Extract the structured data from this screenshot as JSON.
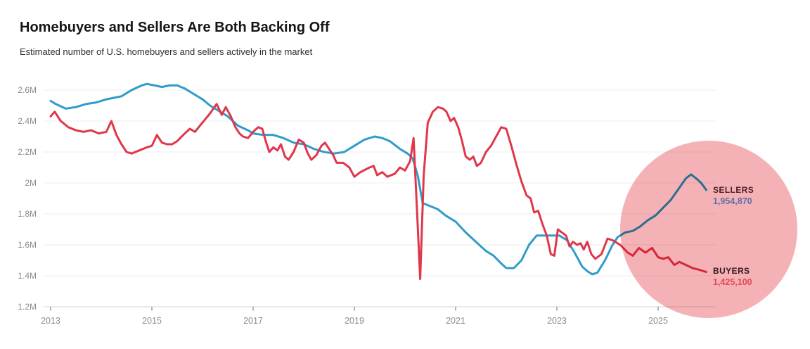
{
  "header": {
    "title": "Homebuyers and Sellers Are Both Backing Off",
    "subtitle": "Estimated number of U.S. homebuyers and sellers actively in the market"
  },
  "chart_data": {
    "type": "line",
    "title": "Homebuyers and Sellers Are Both Backing Off",
    "subtitle": "Estimated number of U.S. homebuyers and sellers actively in the market",
    "unit": "millions of people",
    "grid": true,
    "legend_position": "end-of-line labels (right side, inside pink highlight circle)",
    "x_axis": {
      "label": "",
      "ticks": [
        2013,
        2015,
        2017,
        2019,
        2021,
        2023,
        2025
      ],
      "tick_labels": [
        "2013",
        "2015",
        "2017",
        "2019",
        "2021",
        "2023",
        "2025"
      ],
      "range": [
        2013,
        2026
      ]
    },
    "y_axis": {
      "label": "",
      "ticks": [
        2.6,
        2.4,
        2.2,
        2.0,
        1.8,
        1.6,
        1.4,
        1.2
      ],
      "tick_labels": [
        "2.6M",
        "2.4M",
        "2.2M",
        "2M",
        "1.8M",
        "1.6M",
        "1.4M",
        "1.2M"
      ],
      "range": [
        1.2,
        2.6
      ]
    },
    "highlight": {
      "description": "pink circle highlighting 2024-2026 divergence",
      "color": "#f5b2b6"
    },
    "series": [
      {
        "name": "SELLERS",
        "color": "#2f9cc9",
        "end_label": "SELLERS",
        "end_value": 1954870,
        "end_value_label": "1,954,870",
        "points": [
          [
            2013.0,
            2.53
          ],
          [
            2013.1,
            2.51
          ],
          [
            2013.3,
            2.48
          ],
          [
            2013.5,
            2.49
          ],
          [
            2013.7,
            2.51
          ],
          [
            2013.9,
            2.52
          ],
          [
            2014.1,
            2.54
          ],
          [
            2014.25,
            2.55
          ],
          [
            2014.4,
            2.56
          ],
          [
            2014.6,
            2.6
          ],
          [
            2014.8,
            2.63
          ],
          [
            2014.9,
            2.64
          ],
          [
            2015.05,
            2.63
          ],
          [
            2015.2,
            2.62
          ],
          [
            2015.35,
            2.63
          ],
          [
            2015.5,
            2.63
          ],
          [
            2015.65,
            2.61
          ],
          [
            2015.8,
            2.58
          ],
          [
            2016.0,
            2.54
          ],
          [
            2016.15,
            2.5
          ],
          [
            2016.3,
            2.47
          ],
          [
            2016.5,
            2.43
          ],
          [
            2016.7,
            2.37
          ],
          [
            2016.9,
            2.34
          ],
          [
            2017.0,
            2.32
          ],
          [
            2017.2,
            2.31
          ],
          [
            2017.4,
            2.31
          ],
          [
            2017.6,
            2.29
          ],
          [
            2017.8,
            2.26
          ],
          [
            2018.0,
            2.25
          ],
          [
            2018.2,
            2.22
          ],
          [
            2018.4,
            2.2
          ],
          [
            2018.6,
            2.19
          ],
          [
            2018.8,
            2.2
          ],
          [
            2019.0,
            2.24
          ],
          [
            2019.2,
            2.28
          ],
          [
            2019.4,
            2.3
          ],
          [
            2019.55,
            2.29
          ],
          [
            2019.7,
            2.27
          ],
          [
            2019.9,
            2.22
          ],
          [
            2020.05,
            2.19
          ],
          [
            2020.15,
            2.16
          ],
          [
            2020.25,
            2.05
          ],
          [
            2020.35,
            1.87
          ],
          [
            2020.5,
            1.85
          ],
          [
            2020.65,
            1.83
          ],
          [
            2020.8,
            1.79
          ],
          [
            2021.0,
            1.75
          ],
          [
            2021.2,
            1.68
          ],
          [
            2021.4,
            1.62
          ],
          [
            2021.6,
            1.56
          ],
          [
            2021.75,
            1.53
          ],
          [
            2021.9,
            1.48
          ],
          [
            2022.0,
            1.45
          ],
          [
            2022.15,
            1.45
          ],
          [
            2022.3,
            1.5
          ],
          [
            2022.45,
            1.6
          ],
          [
            2022.6,
            1.66
          ],
          [
            2022.75,
            1.66
          ],
          [
            2022.9,
            1.66
          ],
          [
            2023.05,
            1.66
          ],
          [
            2023.2,
            1.63
          ],
          [
            2023.35,
            1.55
          ],
          [
            2023.5,
            1.46
          ],
          [
            2023.6,
            1.43
          ],
          [
            2023.7,
            1.41
          ],
          [
            2023.8,
            1.42
          ],
          [
            2023.95,
            1.5
          ],
          [
            2024.1,
            1.6
          ],
          [
            2024.2,
            1.65
          ],
          [
            2024.35,
            1.68
          ],
          [
            2024.5,
            1.69
          ],
          [
            2024.65,
            1.72
          ],
          [
            2024.8,
            1.76
          ],
          [
            2024.95,
            1.79
          ],
          [
            2025.1,
            1.84
          ],
          [
            2025.25,
            1.89
          ],
          [
            2025.4,
            1.96
          ],
          [
            2025.55,
            2.03
          ],
          [
            2025.65,
            2.055
          ],
          [
            2025.75,
            2.03
          ],
          [
            2025.85,
            2.0
          ],
          [
            2025.95,
            1.9549
          ]
        ]
      },
      {
        "name": "BUYERS",
        "color": "#e0374b",
        "end_label": "BUYERS",
        "end_value": 1425100,
        "end_value_label": "1,425,100",
        "points": [
          [
            2013.0,
            2.43
          ],
          [
            2013.08,
            2.46
          ],
          [
            2013.2,
            2.4
          ],
          [
            2013.35,
            2.36
          ],
          [
            2013.5,
            2.34
          ],
          [
            2013.65,
            2.33
          ],
          [
            2013.8,
            2.34
          ],
          [
            2013.95,
            2.32
          ],
          [
            2014.1,
            2.33
          ],
          [
            2014.2,
            2.4
          ],
          [
            2014.3,
            2.31
          ],
          [
            2014.4,
            2.25
          ],
          [
            2014.5,
            2.2
          ],
          [
            2014.6,
            2.19
          ],
          [
            2014.75,
            2.21
          ],
          [
            2014.9,
            2.23
          ],
          [
            2015.0,
            2.24
          ],
          [
            2015.1,
            2.31
          ],
          [
            2015.2,
            2.26
          ],
          [
            2015.3,
            2.25
          ],
          [
            2015.4,
            2.25
          ],
          [
            2015.5,
            2.27
          ],
          [
            2015.62,
            2.31
          ],
          [
            2015.75,
            2.35
          ],
          [
            2015.85,
            2.33
          ],
          [
            2015.95,
            2.37
          ],
          [
            2016.05,
            2.41
          ],
          [
            2016.15,
            2.45
          ],
          [
            2016.28,
            2.51
          ],
          [
            2016.38,
            2.44
          ],
          [
            2016.46,
            2.49
          ],
          [
            2016.56,
            2.43
          ],
          [
            2016.65,
            2.36
          ],
          [
            2016.73,
            2.32
          ],
          [
            2016.8,
            2.3
          ],
          [
            2016.9,
            2.29
          ],
          [
            2017.0,
            2.33
          ],
          [
            2017.1,
            2.36
          ],
          [
            2017.18,
            2.35
          ],
          [
            2017.25,
            2.27
          ],
          [
            2017.32,
            2.2
          ],
          [
            2017.4,
            2.23
          ],
          [
            2017.48,
            2.21
          ],
          [
            2017.55,
            2.25
          ],
          [
            2017.63,
            2.17
          ],
          [
            2017.7,
            2.15
          ],
          [
            2017.8,
            2.2
          ],
          [
            2017.9,
            2.28
          ],
          [
            2018.0,
            2.26
          ],
          [
            2018.08,
            2.19
          ],
          [
            2018.15,
            2.15
          ],
          [
            2018.25,
            2.18
          ],
          [
            2018.35,
            2.24
          ],
          [
            2018.42,
            2.26
          ],
          [
            2018.5,
            2.22
          ],
          [
            2018.58,
            2.18
          ],
          [
            2018.65,
            2.13
          ],
          [
            2018.78,
            2.13
          ],
          [
            2018.9,
            2.1
          ],
          [
            2019.0,
            2.04
          ],
          [
            2019.12,
            2.07
          ],
          [
            2019.3,
            2.1
          ],
          [
            2019.38,
            2.11
          ],
          [
            2019.45,
            2.05
          ],
          [
            2019.55,
            2.07
          ],
          [
            2019.65,
            2.04
          ],
          [
            2019.8,
            2.06
          ],
          [
            2019.9,
            2.1
          ],
          [
            2020.0,
            2.08
          ],
          [
            2020.1,
            2.14
          ],
          [
            2020.17,
            2.29
          ],
          [
            2020.24,
            1.8
          ],
          [
            2020.3,
            1.38
          ],
          [
            2020.37,
            2.05
          ],
          [
            2020.45,
            2.39
          ],
          [
            2020.55,
            2.46
          ],
          [
            2020.65,
            2.49
          ],
          [
            2020.75,
            2.48
          ],
          [
            2020.82,
            2.46
          ],
          [
            2020.9,
            2.4
          ],
          [
            2020.97,
            2.42
          ],
          [
            2021.05,
            2.36
          ],
          [
            2021.12,
            2.28
          ],
          [
            2021.2,
            2.17
          ],
          [
            2021.28,
            2.15
          ],
          [
            2021.35,
            2.17
          ],
          [
            2021.42,
            2.11
          ],
          [
            2021.5,
            2.13
          ],
          [
            2021.6,
            2.2
          ],
          [
            2021.7,
            2.24
          ],
          [
            2021.8,
            2.3
          ],
          [
            2021.9,
            2.36
          ],
          [
            2022.0,
            2.35
          ],
          [
            2022.1,
            2.24
          ],
          [
            2022.2,
            2.12
          ],
          [
            2022.3,
            2.01
          ],
          [
            2022.4,
            1.92
          ],
          [
            2022.48,
            1.9
          ],
          [
            2022.55,
            1.81
          ],
          [
            2022.63,
            1.82
          ],
          [
            2022.72,
            1.73
          ],
          [
            2022.8,
            1.66
          ],
          [
            2022.88,
            1.54
          ],
          [
            2022.95,
            1.53
          ],
          [
            2023.02,
            1.7
          ],
          [
            2023.1,
            1.68
          ],
          [
            2023.18,
            1.66
          ],
          [
            2023.25,
            1.59
          ],
          [
            2023.32,
            1.62
          ],
          [
            2023.4,
            1.6
          ],
          [
            2023.47,
            1.61
          ],
          [
            2023.53,
            1.57
          ],
          [
            2023.6,
            1.62
          ],
          [
            2023.68,
            1.54
          ],
          [
            2023.76,
            1.51
          ],
          [
            2023.88,
            1.54
          ],
          [
            2024.0,
            1.64
          ],
          [
            2024.1,
            1.63
          ],
          [
            2024.25,
            1.6
          ],
          [
            2024.4,
            1.55
          ],
          [
            2024.5,
            1.53
          ],
          [
            2024.62,
            1.58
          ],
          [
            2024.75,
            1.55
          ],
          [
            2024.88,
            1.58
          ],
          [
            2025.0,
            1.52
          ],
          [
            2025.1,
            1.51
          ],
          [
            2025.2,
            1.52
          ],
          [
            2025.32,
            1.47
          ],
          [
            2025.42,
            1.49
          ],
          [
            2025.55,
            1.47
          ],
          [
            2025.68,
            1.45
          ],
          [
            2025.8,
            1.44
          ],
          [
            2025.95,
            1.4251
          ]
        ]
      }
    ]
  },
  "colors": {
    "sellers_line": "#2f9cc9",
    "buyers_line": "#e0374b",
    "highlight_circle": "#f5b2b6",
    "gridline": "#ececec",
    "axis_line": "#d6d6d6",
    "tick_text": "#8c8c8c",
    "sellers_label_text": "#4d2129",
    "sellers_value_text": "#5e6fa5",
    "buyers_label_text": "#35191d",
    "buyers_value_text": "#e24857"
  }
}
